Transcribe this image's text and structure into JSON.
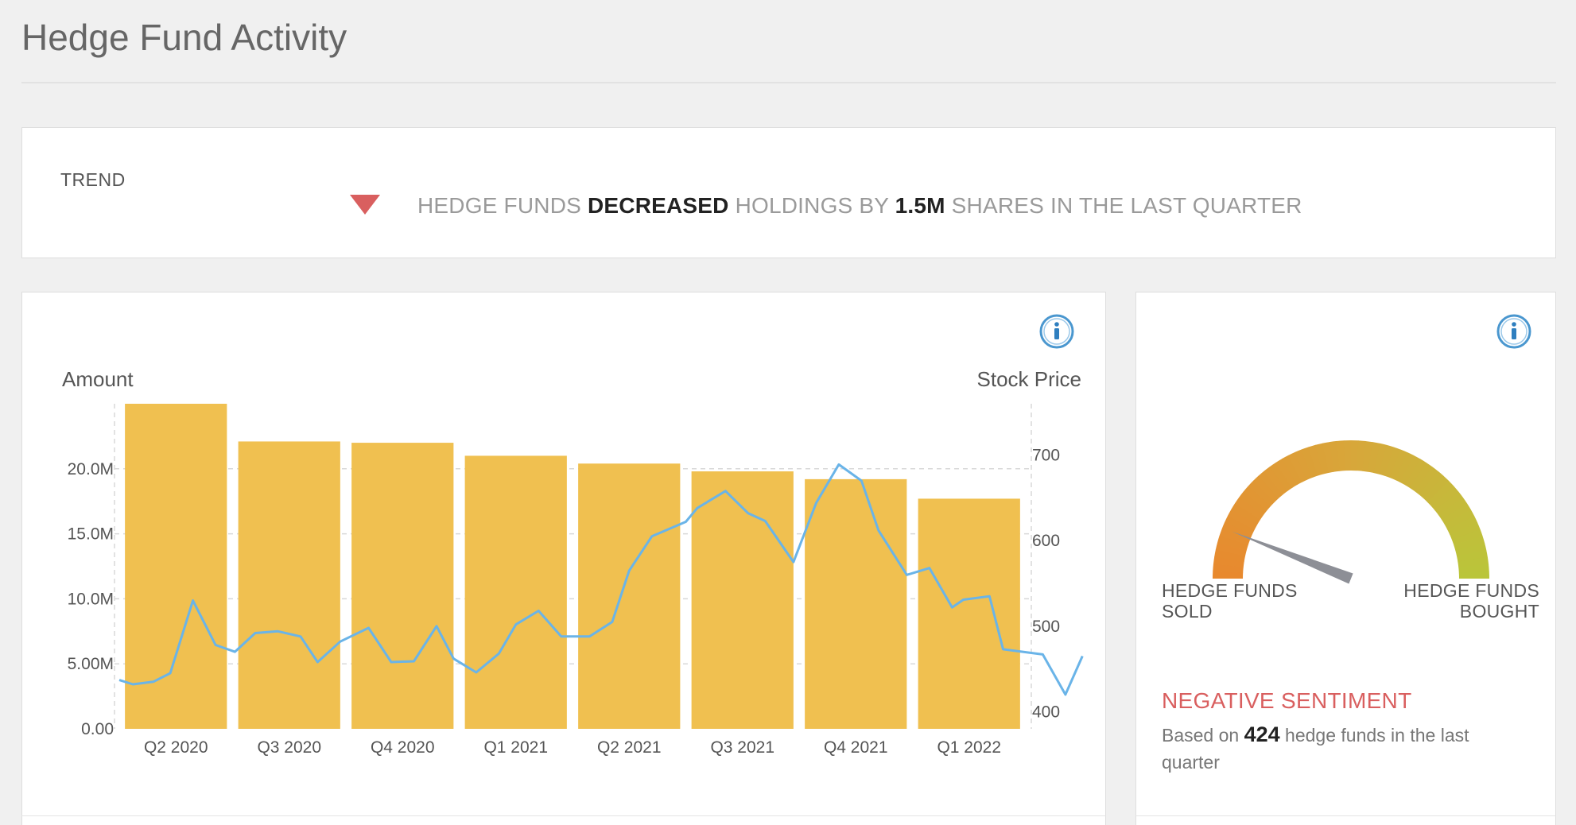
{
  "page": {
    "title": "Hedge Fund Activity"
  },
  "trend": {
    "label": "TREND",
    "direction": "down",
    "arrow_color": "#d95f5f",
    "text_prefix": "HEDGE FUNDS ",
    "text_action": "DECREASED",
    "text_middle": " HOLDINGS BY ",
    "text_amount": "1.5M",
    "text_suffix": " SHARES IN THE LAST QUARTER"
  },
  "icons": {
    "info": "info-icon"
  },
  "chart_data": {
    "type": "bar",
    "left_axis_title": "Amount",
    "right_axis_title": "Stock Price",
    "categories": [
      "Q2 2020",
      "Q3 2020",
      "Q4 2020",
      "Q1 2021",
      "Q2 2021",
      "Q3 2021",
      "Q4 2021",
      "Q1 2022"
    ],
    "y_left": {
      "min": 0,
      "max": 25000000,
      "ticks": [
        0,
        5000000,
        10000000,
        15000000,
        20000000
      ],
      "tick_labels": [
        "0.00",
        "5.00M",
        "10.0M",
        "15.0M",
        "20.0M"
      ]
    },
    "y_right": {
      "min": 380,
      "max": 760,
      "ticks": [
        400,
        500,
        600,
        700
      ],
      "tick_labels": [
        "400",
        "500",
        "600",
        "700"
      ]
    },
    "bar_color": "#f0c050",
    "line_color": "#6ab4e8",
    "series": [
      {
        "type": "bar",
        "axis": "left",
        "values": [
          25000000,
          22100000,
          22000000,
          21000000,
          20400000,
          19800000,
          19200000,
          17700000
        ]
      },
      {
        "type": "line",
        "axis": "right",
        "x": [
          -0.5,
          -0.38,
          -0.2,
          -0.05,
          0.15,
          0.35,
          0.52,
          0.7,
          0.9,
          1.1,
          1.25,
          1.45,
          1.7,
          1.9,
          2.1,
          2.3,
          2.45,
          2.65,
          2.85,
          3.0,
          3.2,
          3.4,
          3.65,
          3.85,
          4.0,
          4.2,
          4.5,
          4.6,
          4.85,
          5.05,
          5.2,
          5.45,
          5.65,
          5.85,
          6.05,
          6.2,
          6.45,
          6.65,
          6.85,
          6.95,
          7.18,
          7.3,
          7.65,
          7.85,
          8.0
        ],
        "values": [
          437,
          432,
          435,
          445,
          530,
          478,
          470,
          492,
          494,
          488,
          458,
          482,
          498,
          458,
          459,
          500,
          462,
          446,
          468,
          502,
          518,
          488,
          488,
          505,
          565,
          605,
          622,
          638,
          658,
          632,
          623,
          575,
          644,
          689,
          670,
          612,
          560,
          568,
          522,
          531,
          535,
          473,
          467,
          420,
          465
        ]
      }
    ]
  },
  "gauge": {
    "label_left_1": "HEDGE FUNDS",
    "label_left_2": "SOLD",
    "label_right_1": "HEDGE FUNDS",
    "label_right_2": "BOUGHT",
    "needle_value": 0.12,
    "color_start": "#e8892e",
    "color_end": "#b9c63a",
    "sentiment": "NEGATIVE SENTIMENT",
    "based_prefix": "Based on ",
    "fund_count": "424",
    "based_suffix": " hedge funds in the last quarter"
  }
}
